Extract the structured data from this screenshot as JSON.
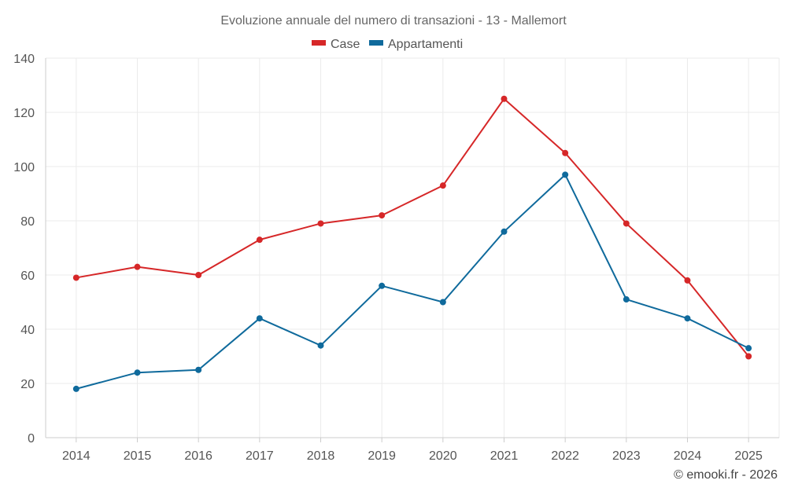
{
  "chart_data": {
    "type": "line",
    "title": "Evoluzione annuale del numero di transazioni - 13 - Mallemort",
    "xlabel": "",
    "ylabel": "",
    "ylim": [
      0,
      140
    ],
    "yticks": [
      0,
      20,
      40,
      60,
      80,
      100,
      120,
      140
    ],
    "categories": [
      "2014",
      "2015",
      "2016",
      "2017",
      "2018",
      "2019",
      "2020",
      "2021",
      "2022",
      "2023",
      "2024",
      "2025"
    ],
    "series": [
      {
        "name": "Case",
        "color": "#d62728",
        "values": [
          59,
          63,
          60,
          73,
          79,
          82,
          93,
          125,
          105,
          79,
          58,
          30
        ]
      },
      {
        "name": "Appartamenti",
        "color": "#0f6a9c",
        "values": [
          18,
          24,
          25,
          44,
          34,
          56,
          50,
          76,
          97,
          51,
          44,
          33
        ]
      }
    ],
    "legend_position": "top-center",
    "grid": true
  },
  "credit": "© emooki.fr - 2026"
}
